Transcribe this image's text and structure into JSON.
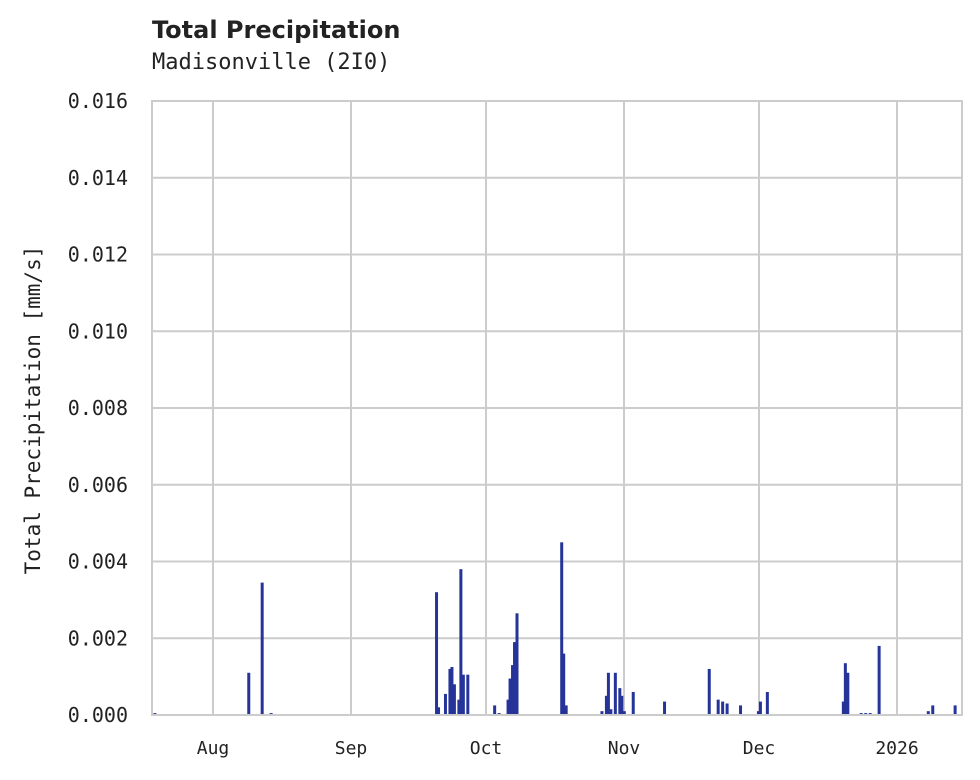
{
  "chart_data": {
    "type": "bar",
    "title": "Total Precipitation",
    "subtitle": "Madisonville (2I0)",
    "xlabel": "",
    "ylabel": "Total Precipitation [mm/s]",
    "ylim": [
      0,
      0.016
    ],
    "yticks": [
      "0.000",
      "0.002",
      "0.004",
      "0.006",
      "0.008",
      "0.010",
      "0.012",
      "0.014",
      "0.016"
    ],
    "xticks": [
      "Aug",
      "Sep",
      "Oct",
      "Nov",
      "Dec",
      "2026"
    ],
    "grid": true,
    "legend": null,
    "series_color": "#26349a",
    "series": [
      {
        "name": "Total Precipitation",
        "points": [
          {
            "x": "2025-07-19",
            "y": 5e-05
          },
          {
            "x": "2025-08-09",
            "y": 0.0011
          },
          {
            "x": "2025-08-12",
            "y": 0.00345
          },
          {
            "x": "2025-08-14",
            "y": 5e-05
          },
          {
            "x": "2025-09-20",
            "y": 0.0032
          },
          {
            "x": "2025-09-20",
            "y": 0.0002
          },
          {
            "x": "2025-09-22",
            "y": 0.00055
          },
          {
            "x": "2025-09-23",
            "y": 0.0012
          },
          {
            "x": "2025-09-23",
            "y": 0.00125
          },
          {
            "x": "2025-09-24",
            "y": 0.0008
          },
          {
            "x": "2025-09-25",
            "y": 0.0004
          },
          {
            "x": "2025-09-25",
            "y": 0.0038
          },
          {
            "x": "2025-09-26",
            "y": 0.00105
          },
          {
            "x": "2025-09-27",
            "y": 0.00105
          },
          {
            "x": "2025-10-03",
            "y": 0.00025
          },
          {
            "x": "2025-10-04",
            "y": 5e-05
          },
          {
            "x": "2025-10-06",
            "y": 0.0004
          },
          {
            "x": "2025-10-06",
            "y": 0.00095
          },
          {
            "x": "2025-10-07",
            "y": 0.0013
          },
          {
            "x": "2025-10-07",
            "y": 0.0019
          },
          {
            "x": "2025-10-08",
            "y": 0.00265
          },
          {
            "x": "2025-10-18",
            "y": 0.0045
          },
          {
            "x": "2025-10-18",
            "y": 0.0016
          },
          {
            "x": "2025-10-19",
            "y": 0.00025
          },
          {
            "x": "2025-10-27",
            "y": 0.0001
          },
          {
            "x": "2025-10-28",
            "y": 0.0005
          },
          {
            "x": "2025-10-28",
            "y": 0.0011
          },
          {
            "x": "2025-10-29",
            "y": 0.00015
          },
          {
            "x": "2025-10-30",
            "y": 0.0011
          },
          {
            "x": "2025-10-31",
            "y": 0.0007
          },
          {
            "x": "2025-10-31",
            "y": 0.0005
          },
          {
            "x": "2025-11-01",
            "y": 0.0001
          },
          {
            "x": "2025-11-03",
            "y": 0.0006
          },
          {
            "x": "2025-11-10",
            "y": 0.00035
          },
          {
            "x": "2025-11-20",
            "y": 0.0012
          },
          {
            "x": "2025-11-22",
            "y": 0.0004
          },
          {
            "x": "2025-11-23",
            "y": 0.00035
          },
          {
            "x": "2025-11-24",
            "y": 0.0003
          },
          {
            "x": "2025-11-27",
            "y": 0.00025
          },
          {
            "x": "2025-12-01",
            "y": 0.0001
          },
          {
            "x": "2025-12-01",
            "y": 0.00035
          },
          {
            "x": "2025-12-03",
            "y": 0.0006
          },
          {
            "x": "2025-12-20",
            "y": 0.00035
          },
          {
            "x": "2025-12-20",
            "y": 0.00135
          },
          {
            "x": "2025-12-21",
            "y": 0.0011
          },
          {
            "x": "2025-12-24",
            "y": 5e-05
          },
          {
            "x": "2025-12-25",
            "y": 5e-05
          },
          {
            "x": "2025-12-26",
            "y": 5e-05
          },
          {
            "x": "2025-12-28",
            "y": 0.0018
          },
          {
            "x": "2026-01-08",
            "y": 0.0001
          },
          {
            "x": "2026-01-09",
            "y": 0.00025
          },
          {
            "x": "2026-01-14",
            "y": 0.00025
          }
        ]
      }
    ]
  }
}
